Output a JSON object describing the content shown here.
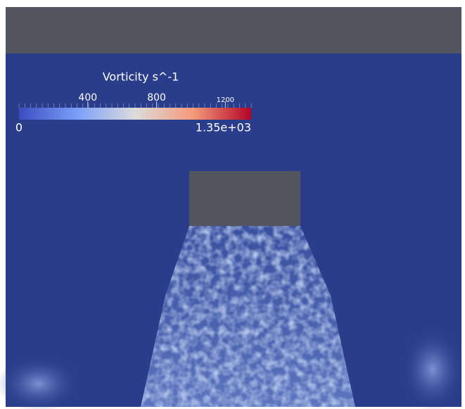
{
  "colorbar": {
    "title": "Vorticity s^-1",
    "min": 0,
    "max": {
      "value": 1350,
      "label": "1.35e+03"
    },
    "ticks": [
      400,
      800,
      1200
    ]
  }
}
